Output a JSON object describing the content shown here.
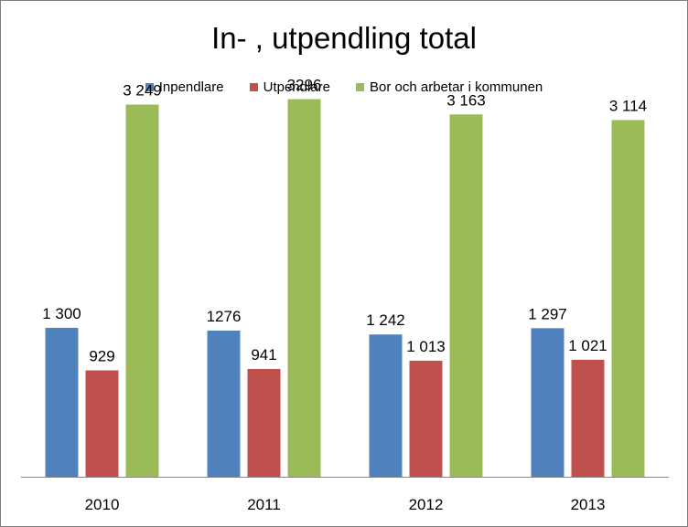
{
  "chart_data": {
    "type": "bar",
    "title": "In- , utpendling total",
    "xlabel": "",
    "ylabel": "",
    "categories": [
      "2010",
      "2011",
      "2012",
      "2013"
    ],
    "series": [
      {
        "name": "Inpendlare",
        "color": "#4f81bd",
        "values": [
          1300,
          1276,
          1242,
          1297
        ],
        "labels": [
          "1 300",
          "1276",
          "1 242",
          "1 297"
        ]
      },
      {
        "name": "Utpendlare",
        "color": "#c0504d",
        "values": [
          929,
          941,
          1013,
          1021
        ],
        "labels": [
          "929",
          "941",
          "1 013",
          "1 021"
        ]
      },
      {
        "name": "Bor och arbetar i kommunen",
        "color": "#9bbb59",
        "values": [
          3249,
          3296,
          3163,
          3114
        ],
        "labels": [
          "3 249",
          "3296",
          "3 163",
          "3 114"
        ]
      }
    ],
    "ylim": [
      0,
      3500
    ],
    "grid": false,
    "legend_position": "top"
  }
}
